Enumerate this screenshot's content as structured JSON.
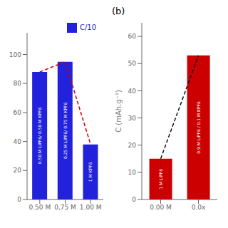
{
  "chart_data": [
    {
      "type": "bar",
      "categories": [
        "0.50 M",
        "0,75 M",
        "1.00 M"
      ],
      "annotations": [
        "0.50 M LiPF6/ 0.50 M KPF6",
        "0.25 M LiPF6/ 0.75 M KPF6",
        "1 M KPF6"
      ],
      "series": [
        {
          "name": "C/10",
          "type": "bar",
          "color": "#2222dd",
          "values": [
            88,
            95,
            38
          ]
        },
        {
          "type": "line",
          "line_style": "dashed",
          "color": "#cc0000",
          "values": [
            88,
            95,
            38
          ]
        }
      ],
      "ylim": [
        0,
        115
      ],
      "yticks": [
        0,
        20,
        40,
        60,
        80,
        100
      ],
      "legend": "upper right",
      "grid": false
    },
    {
      "type": "bar",
      "title": "(b)",
      "ylabel": "C (mAh.g⁻¹)",
      "categories": [
        "0.00 M",
        "0.0x"
      ],
      "annotations": [
        "1 M LiPF6",
        "0.9 M LiPF6 / 0.1 M KPF6"
      ],
      "series": [
        {
          "type": "bar",
          "color": "#cc0000",
          "values": [
            15,
            53
          ]
        },
        {
          "type": "line",
          "line_style": "dashed",
          "color": "#111111",
          "values": [
            15,
            53
          ]
        }
      ],
      "ylim": [
        0,
        65
      ],
      "yticks": [
        0,
        10,
        20,
        30,
        40,
        50,
        60
      ],
      "grid": false
    }
  ]
}
